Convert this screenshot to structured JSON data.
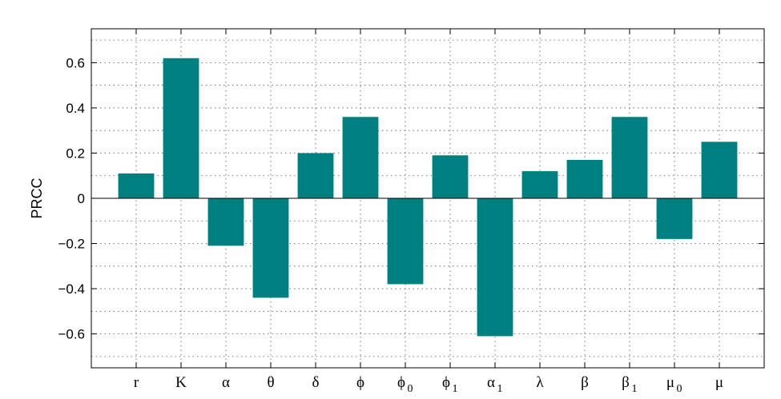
{
  "chart_data": {
    "type": "bar",
    "ylabel": "PRCC",
    "xlabel": "",
    "ylim": [
      -0.75,
      0.75
    ],
    "yticks": [
      -0.6,
      -0.4,
      -0.2,
      0,
      0.2,
      0.4,
      0.6
    ],
    "ytick_labels": [
      "−0.6",
      "−0.4",
      "−0.2",
      "0",
      "0.2",
      "0.4",
      "0.6"
    ],
    "grid": true,
    "bar_color": "#008080",
    "categories": [
      {
        "label": "r",
        "sub": ""
      },
      {
        "label": "K",
        "sub": ""
      },
      {
        "label": "α",
        "sub": ""
      },
      {
        "label": "θ",
        "sub": ""
      },
      {
        "label": "δ",
        "sub": ""
      },
      {
        "label": "ϕ",
        "sub": ""
      },
      {
        "label": "ϕ",
        "sub": "0"
      },
      {
        "label": "ϕ",
        "sub": "1"
      },
      {
        "label": "α",
        "sub": "1"
      },
      {
        "label": "λ",
        "sub": ""
      },
      {
        "label": "β",
        "sub": ""
      },
      {
        "label": "β",
        "sub": "1"
      },
      {
        "label": "μ",
        "sub": "0"
      },
      {
        "label": "μ",
        "sub": ""
      }
    ],
    "values": [
      0.11,
      0.62,
      -0.21,
      -0.44,
      0.2,
      0.36,
      -0.38,
      0.19,
      -0.61,
      0.12,
      0.17,
      0.36,
      -0.18,
      0.25
    ]
  }
}
